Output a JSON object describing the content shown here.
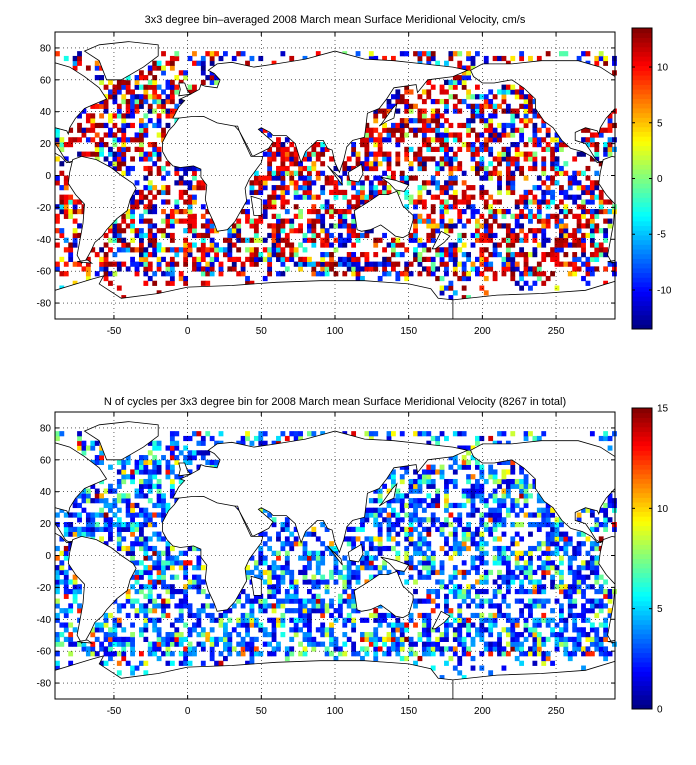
{
  "chart_data": [
    {
      "type": "heatmap",
      "title": "3x3 degree bin–averaged 2008 March mean Surface Meridional Velocity, cm/s",
      "xlabel": "",
      "ylabel": "",
      "xlim": [
        -90,
        290
      ],
      "ylim": [
        -90,
        90
      ],
      "x_ticks": [
        -50,
        0,
        50,
        100,
        150,
        200,
        250
      ],
      "y_ticks": [
        80,
        60,
        40,
        20,
        0,
        -20,
        -40,
        -60,
        -80
      ],
      "colorbar": {
        "min": -13.5,
        "max": 13.5,
        "ticks": [
          10,
          5,
          0,
          -5,
          -10
        ],
        "colormap": "jet"
      },
      "grid": true,
      "bin_size_deg": 3,
      "scale_kind": "velocity"
    },
    {
      "type": "heatmap",
      "title": "N of cycles per 3x3 degree bin for 2008 March mean Surface Meridional Velocity (8267 in total)",
      "xlabel": "",
      "ylabel": "",
      "xlim": [
        -90,
        290
      ],
      "ylim": [
        -90,
        90
      ],
      "x_ticks": [
        -50,
        0,
        50,
        100,
        150,
        200,
        250
      ],
      "y_ticks": [
        80,
        60,
        40,
        20,
        0,
        -20,
        -40,
        -60,
        -80
      ],
      "colorbar": {
        "min": 0,
        "max": 15,
        "ticks": [
          15,
          10,
          5,
          0
        ],
        "colormap": "jet"
      },
      "grid": true,
      "bin_size_deg": 3,
      "scale_kind": "count"
    }
  ]
}
